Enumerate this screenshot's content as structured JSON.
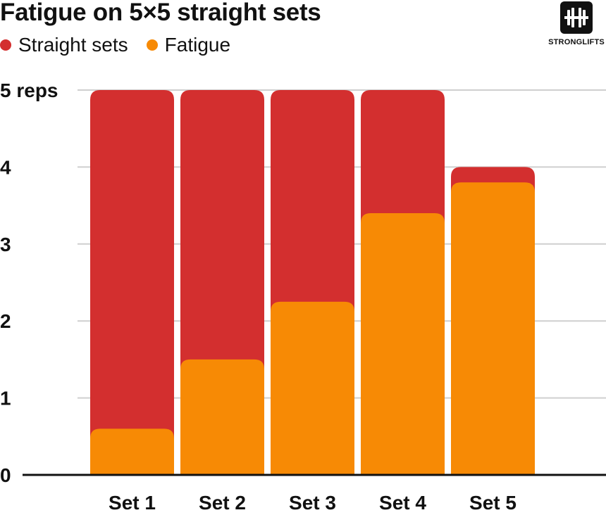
{
  "chart_data": {
    "type": "bar",
    "title": "Fatigue on 5×5 straight sets",
    "categories": [
      "Set 1",
      "Set 2",
      "Set 3",
      "Set 4",
      "Set 5"
    ],
    "series": [
      {
        "name": "Straight sets",
        "values": [
          5,
          5,
          5,
          5,
          4
        ]
      },
      {
        "name": "Fatigue",
        "values": [
          0.6,
          1.5,
          2.25,
          3.4,
          3.8
        ]
      }
    ],
    "y_ticks": [
      "0",
      "1",
      "2",
      "3",
      "4",
      "5 reps"
    ],
    "ylabel": "reps",
    "xlabel": "",
    "ylim": [
      0,
      5
    ],
    "grid": true,
    "legend": "top-left"
  },
  "colors": {
    "straight_sets": "#D32F2F",
    "fatigue": "#F78A05",
    "grid": "#cfcfcf",
    "axis": "#111111"
  },
  "logo": {
    "text": "STRONGLIFTS",
    "icon": "barbell-icon"
  }
}
